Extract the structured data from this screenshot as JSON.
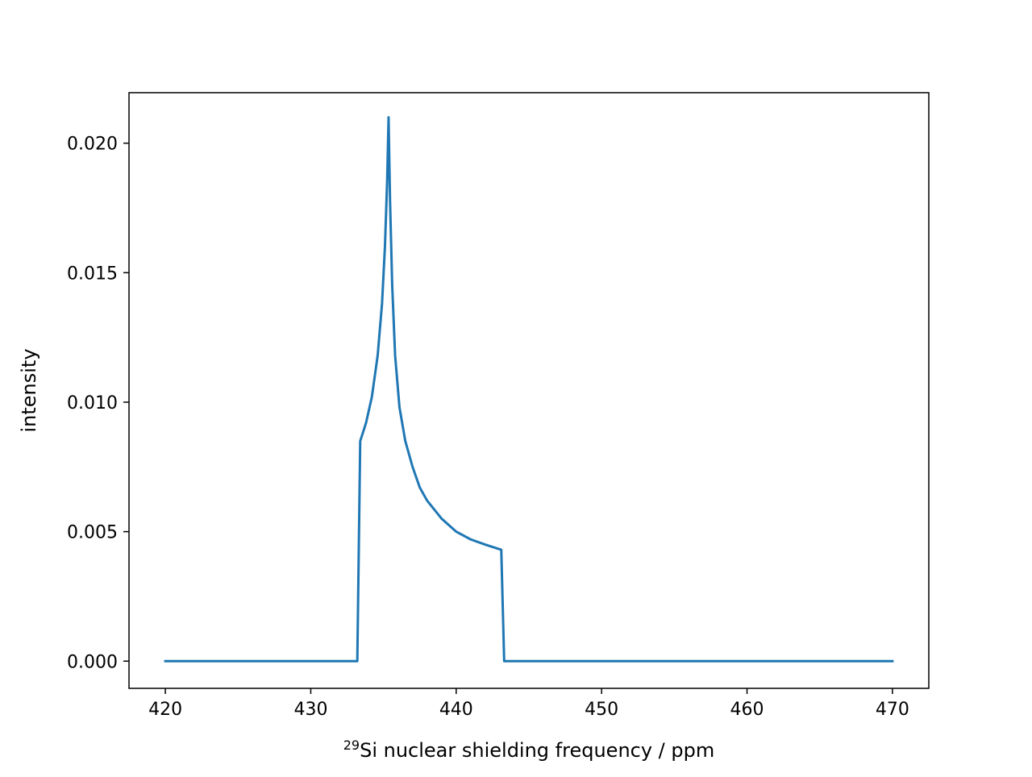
{
  "chart_data": {
    "type": "line",
    "title": "",
    "xlabel_superscript": "29",
    "xlabel": "Si nuclear shielding frequency / ppm",
    "ylabel": "intensity",
    "xlim": [
      417.5,
      472.5
    ],
    "ylim": [
      -0.00105,
      0.02195
    ],
    "xticks": [
      420,
      430,
      440,
      450,
      460,
      470
    ],
    "xtick_labels": [
      "420",
      "430",
      "440",
      "450",
      "460",
      "470"
    ],
    "yticks": [
      0.0,
      0.005,
      0.01,
      0.015,
      0.02
    ],
    "ytick_labels": [
      "0.000",
      "0.005",
      "0.010",
      "0.015",
      "0.020"
    ],
    "grid": false,
    "legend": "none",
    "series": [
      {
        "color": "#1f77b4",
        "x": [
          420.0,
          433.2,
          433.4,
          433.8,
          434.2,
          434.6,
          434.9,
          435.1,
          435.25,
          435.35,
          435.45,
          435.6,
          435.8,
          436.1,
          436.5,
          437.0,
          437.5,
          438.0,
          439.0,
          440.0,
          441.0,
          442.0,
          443.1,
          443.3,
          450.0,
          460.0,
          470.0
        ],
        "y": [
          0.0,
          0.0,
          0.0085,
          0.0092,
          0.0102,
          0.0118,
          0.0138,
          0.016,
          0.0185,
          0.021,
          0.0178,
          0.0145,
          0.0118,
          0.0098,
          0.0085,
          0.0075,
          0.0067,
          0.0062,
          0.0055,
          0.005,
          0.0047,
          0.0045,
          0.0043,
          0.0,
          0.0,
          0.0,
          0.0
        ]
      }
    ]
  }
}
